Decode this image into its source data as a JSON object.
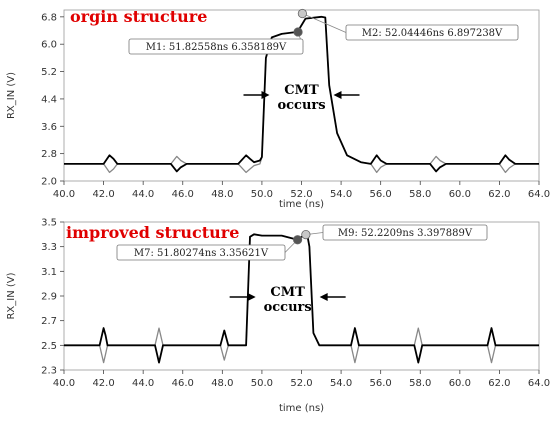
{
  "colors": {
    "title": "#e00000",
    "trace_main": "#000000",
    "trace_secondary": "#888888",
    "marker_bright": "#c8c8c8",
    "marker_dark": "#555555"
  },
  "chart_data": [
    {
      "type": "line",
      "title": "orgin structure",
      "xlabel": "time (ns)",
      "ylabel": "RX_IN (V)",
      "xlim": [
        40.0,
        64.0
      ],
      "ylim": [
        2.0,
        7.0
      ],
      "x_ticks": [
        "40.0",
        "42.0",
        "44.0",
        "46.0",
        "48.0",
        "50.0",
        "52.0",
        "54.0",
        "56.0",
        "58.0",
        "60.0",
        "62.0",
        "64.0"
      ],
      "y_ticks": [
        "2.0",
        "2.8",
        "3.6",
        "4.4",
        "5.2",
        "6.0",
        "6.8"
      ],
      "y_tick_values": [
        2.0,
        2.8,
        3.6,
        4.4,
        5.2,
        6.0,
        6.8
      ],
      "series": [
        {
          "role": "main",
          "x": [
            40.0,
            42.0,
            42.3,
            42.5,
            42.7,
            43.1,
            44.0,
            45.4,
            45.7,
            45.9,
            46.2,
            46.6,
            47.5,
            48.8,
            49.2,
            49.4,
            49.6,
            49.9,
            50.0,
            50.2,
            50.5,
            51.0,
            51.8,
            52.2,
            53.0,
            53.2,
            53.4,
            53.8,
            54.3,
            55.0,
            55.5,
            55.8,
            56.0,
            56.3,
            57.0,
            58.5,
            58.8,
            59.0,
            59.3,
            60.0,
            62.0,
            62.3,
            62.5,
            62.8,
            63.4,
            64.0
          ],
          "y": [
            2.5,
            2.5,
            2.75,
            2.65,
            2.5,
            2.5,
            2.5,
            2.5,
            2.28,
            2.4,
            2.5,
            2.5,
            2.5,
            2.5,
            2.75,
            2.65,
            2.55,
            2.6,
            2.7,
            5.6,
            6.2,
            6.3,
            6.36,
            6.75,
            6.8,
            6.78,
            4.8,
            3.4,
            2.75,
            2.55,
            2.5,
            2.75,
            2.6,
            2.5,
            2.5,
            2.5,
            2.28,
            2.4,
            2.5,
            2.5,
            2.5,
            2.75,
            2.62,
            2.5,
            2.5,
            2.5
          ]
        },
        {
          "role": "secondary",
          "x": [
            40.0,
            42.0,
            42.3,
            42.5,
            42.7,
            43.1,
            44.0,
            45.4,
            45.7,
            45.9,
            46.2,
            46.6,
            47.5,
            48.8,
            49.2,
            49.4,
            49.6,
            49.9,
            50.0,
            50.2,
            50.5,
            51.0,
            51.8,
            52.2,
            53.0,
            53.2,
            53.4,
            53.8,
            54.3,
            55.0,
            55.5,
            55.8,
            56.0,
            56.3,
            57.0,
            58.5,
            58.8,
            59.0,
            59.3,
            60.0,
            62.0,
            62.3,
            62.5,
            62.8,
            63.4,
            64.0
          ],
          "y": [
            2.5,
            2.5,
            2.25,
            2.35,
            2.5,
            2.5,
            2.5,
            2.5,
            2.72,
            2.6,
            2.5,
            2.5,
            2.5,
            2.5,
            2.25,
            2.35,
            2.45,
            2.5,
            2.7,
            5.6,
            6.2,
            6.3,
            6.36,
            6.75,
            6.8,
            6.78,
            4.8,
            3.4,
            2.75,
            2.55,
            2.5,
            2.25,
            2.4,
            2.5,
            2.5,
            2.5,
            2.72,
            2.6,
            2.5,
            2.5,
            2.5,
            2.25,
            2.38,
            2.5,
            2.5,
            2.5
          ]
        }
      ],
      "markers": [
        {
          "id": "M1",
          "x": 51.82558,
          "y": 6.358189,
          "label": "M1: 51.82558ns 6.358189V",
          "side": "left"
        },
        {
          "id": "M2",
          "x": 52.04446,
          "y": 6.897238,
          "label": "M2: 52.04446ns 6.897238V",
          "side": "right"
        }
      ],
      "annotation": {
        "lines": [
          "CMT",
          "occurs"
        ],
        "x": 52.0,
        "y": 4.1
      }
    },
    {
      "type": "line",
      "title": "improved structure",
      "xlabel": "time (ns)",
      "ylabel": "RX_IN (V)",
      "xlim": [
        40.0,
        64.0
      ],
      "ylim": [
        2.3,
        3.5
      ],
      "x_ticks": [
        "40.0",
        "42.0",
        "44.0",
        "46.0",
        "48.0",
        "50.0",
        "52.0",
        "54.0",
        "56.0",
        "58.0",
        "60.0",
        "62.0",
        "64.0"
      ],
      "y_ticks": [
        "2.3",
        "2.5",
        "2.7",
        "2.9",
        "3.1",
        "3.3",
        "3.5"
      ],
      "y_tick_values": [
        2.3,
        2.5,
        2.7,
        2.9,
        3.1,
        3.3,
        3.5
      ],
      "series": [
        {
          "role": "main",
          "x": [
            40.0,
            41.8,
            42.0,
            42.1,
            42.2,
            42.5,
            44.6,
            44.8,
            44.9,
            45.0,
            45.3,
            47.9,
            48.1,
            48.2,
            48.3,
            49.2,
            49.4,
            49.6,
            50.0,
            51.0,
            51.8,
            52.0,
            52.3,
            52.4,
            52.6,
            52.9,
            54.5,
            54.7,
            54.8,
            54.9,
            55.2,
            57.7,
            57.9,
            58.0,
            58.1,
            58.4,
            61.4,
            61.6,
            61.7,
            61.8,
            62.1,
            64.0
          ],
          "y": [
            2.5,
            2.5,
            2.64,
            2.58,
            2.5,
            2.5,
            2.5,
            2.36,
            2.43,
            2.5,
            2.5,
            2.5,
            2.62,
            2.56,
            2.5,
            2.5,
            3.38,
            3.4,
            3.39,
            3.39,
            3.356,
            3.38,
            3.39,
            3.3,
            2.6,
            2.5,
            2.5,
            2.64,
            2.57,
            2.5,
            2.5,
            2.5,
            2.36,
            2.43,
            2.5,
            2.5,
            2.5,
            2.64,
            2.57,
            2.5,
            2.5,
            2.5
          ]
        },
        {
          "role": "secondary",
          "x": [
            40.0,
            41.8,
            42.0,
            42.1,
            42.2,
            42.5,
            44.6,
            44.8,
            44.9,
            45.0,
            45.3,
            47.9,
            48.1,
            48.2,
            48.3,
            49.2,
            49.4,
            49.6,
            50.0,
            51.0,
            51.8,
            52.0,
            52.3,
            52.4,
            52.6,
            52.9,
            54.5,
            54.7,
            54.8,
            54.9,
            55.2,
            57.7,
            57.9,
            58.0,
            58.1,
            58.4,
            61.4,
            61.6,
            61.7,
            61.8,
            62.1,
            64.0
          ],
          "y": [
            2.5,
            2.5,
            2.36,
            2.43,
            2.5,
            2.5,
            2.5,
            2.64,
            2.57,
            2.5,
            2.5,
            2.5,
            2.38,
            2.44,
            2.5,
            2.5,
            3.38,
            3.4,
            3.39,
            3.39,
            3.356,
            3.38,
            3.39,
            3.3,
            2.6,
            2.5,
            2.5,
            2.36,
            2.43,
            2.5,
            2.5,
            2.5,
            2.64,
            2.57,
            2.5,
            2.5,
            2.5,
            2.36,
            2.43,
            2.5,
            2.5,
            2.5
          ]
        }
      ],
      "markers": [
        {
          "id": "M7",
          "x": 51.80274,
          "y": 3.35621,
          "label": "M7: 51.80274ns 3.35621V",
          "side": "left"
        },
        {
          "id": "M9",
          "x": 52.2209,
          "y": 3.397889,
          "label": "M9: 52.2209ns 3.397889V",
          "side": "right"
        }
      ],
      "annotation": {
        "lines": [
          "CMT",
          "occurs"
        ],
        "x": 51.3,
        "y": 2.94
      }
    }
  ]
}
